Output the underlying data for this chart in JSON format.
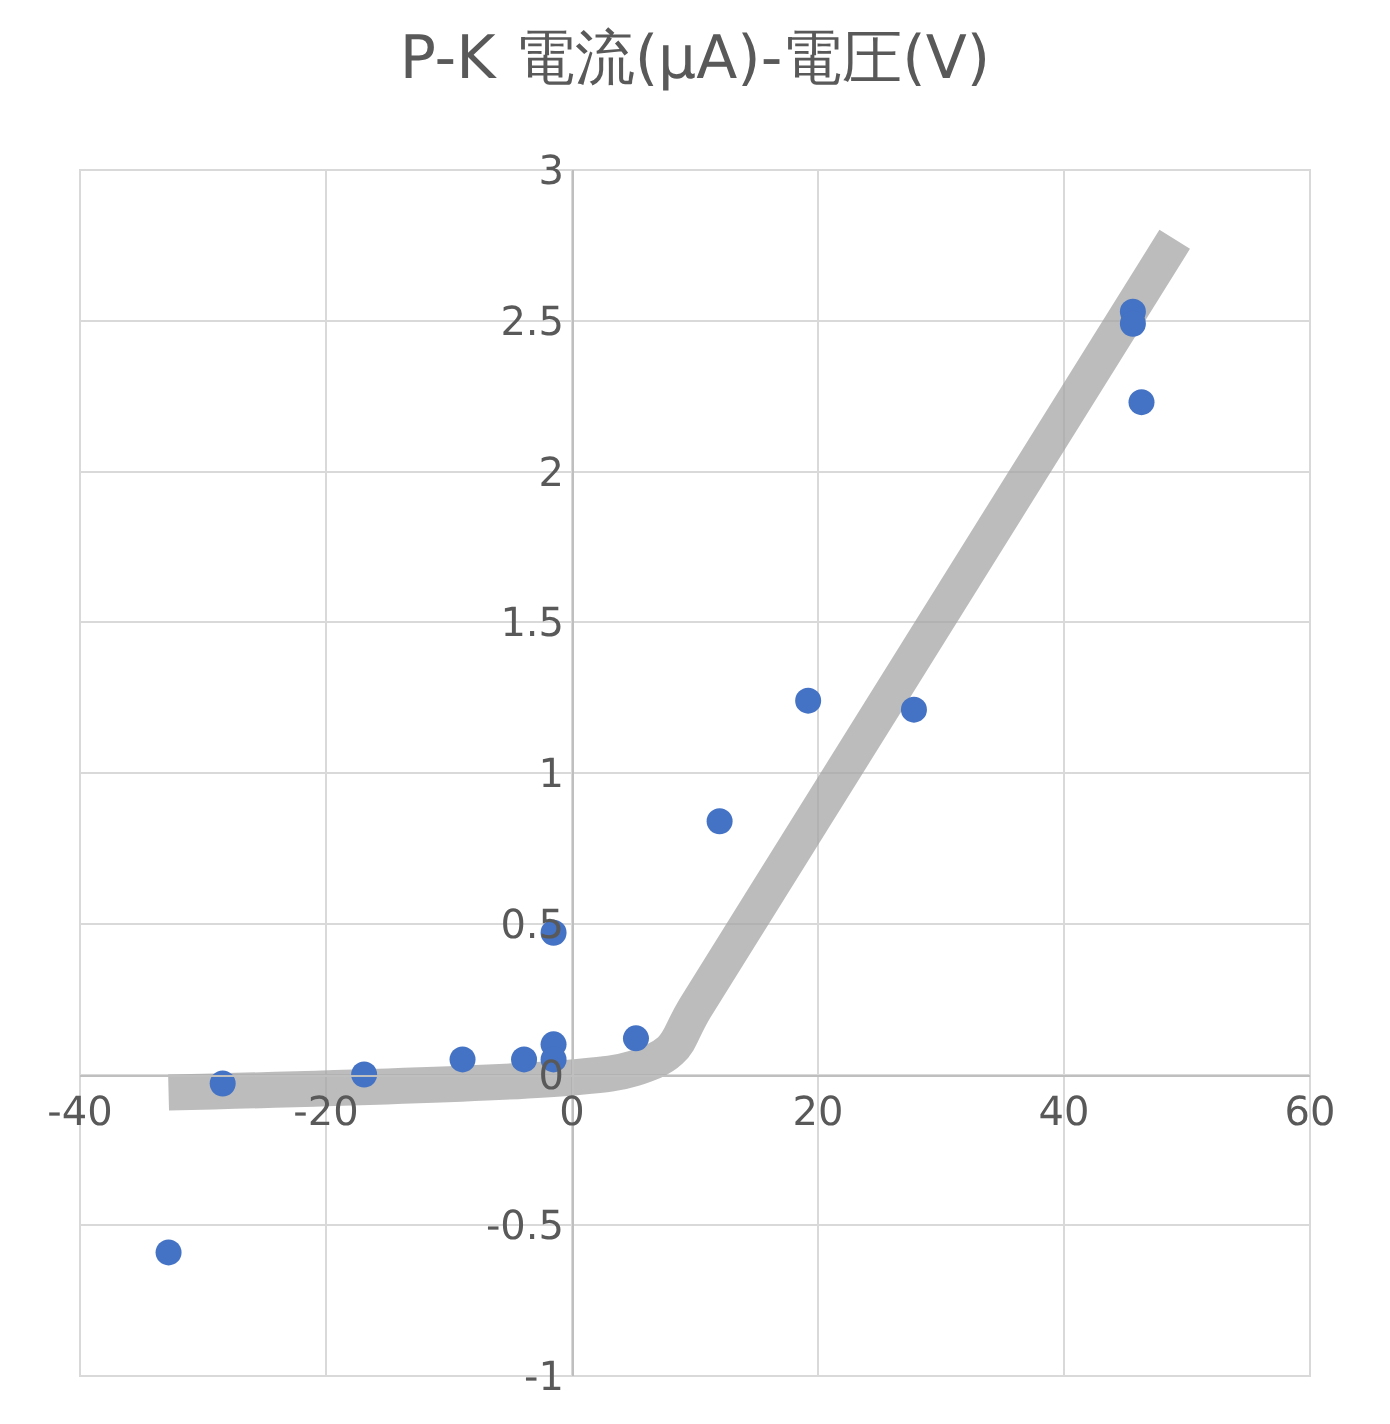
{
  "chart_data": {
    "type": "scatter",
    "title": "P-K 電流(μA)-電圧(V)",
    "series": [
      {
        "type": "line",
        "marker": "none",
        "color": "#a6a6a6",
        "x": [
          -32.8,
          0,
          5,
          8,
          10,
          49
        ],
        "values": [
          -0.06,
          -0.01,
          0.02,
          0.08,
          0.22,
          2.77
        ]
      },
      {
        "color": "#4472c4",
        "x": [
          -32.8,
          -28.4,
          -16.9,
          -8.9,
          -3.9,
          -1.5,
          -1.5,
          -1.5,
          5.2,
          12.0,
          19.2,
          27.8,
          45.6,
          45.6,
          46.3
        ],
        "values": [
          -0.59,
          -0.03,
          0.0,
          0.05,
          0.05,
          0.1,
          0.05,
          0.47,
          0.12,
          0.84,
          1.24,
          1.21,
          2.53,
          2.49,
          2.23
        ]
      }
    ],
    "xlim": [
      -40,
      60
    ],
    "xticks": [
      -40,
      -20,
      0,
      20,
      40,
      60
    ],
    "ylim": [
      -1,
      3
    ],
    "yticks": [
      -1,
      -0.5,
      0,
      0.5,
      1,
      1.5,
      2,
      2.5,
      3
    ],
    "grid": true,
    "marker": "circle"
  }
}
